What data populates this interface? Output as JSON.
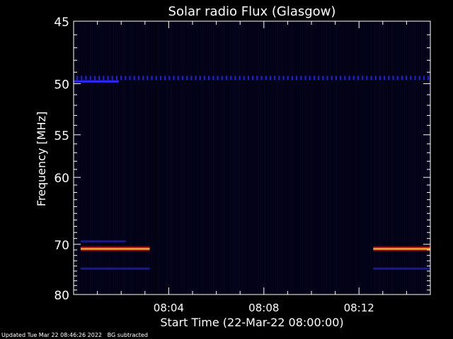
{
  "chart_data": {
    "type": "heatmap",
    "title": "Solar radio Flux (Glasgow)",
    "xlabel": "Start Time (22-Mar-22 08:00:00)",
    "ylabel": "Frequency [MHz]",
    "x_tick_labels": [
      "08:04",
      "08:08",
      "08:12"
    ],
    "x_ticks_min": [
      4,
      8,
      12
    ],
    "x_range_min": [
      0,
      15
    ],
    "y_ticks": [
      45,
      50,
      55,
      60,
      70,
      80
    ],
    "y_range_mhz": [
      45,
      80
    ],
    "y_scale": "reciprocal",
    "colormap": [
      "#000010",
      "#0a0a3a",
      "#1a1aa0",
      "#ff2a2a",
      "#ffb040",
      "#ffffa0"
    ],
    "features": [
      {
        "kind": "dotted-band",
        "freq_mhz": 49.5,
        "t_start_min": 0,
        "t_end_min": 15,
        "color": "#2020d0"
      },
      {
        "kind": "band",
        "freq_mhz": 49.8,
        "t_start_min": 0,
        "t_end_min": 1.9,
        "color": "#2a2aff"
      },
      {
        "kind": "strong-band",
        "freq_mhz": 70.8,
        "t_start_min": 0.3,
        "t_end_min": 3.2,
        "color": "#ff3a2a"
      },
      {
        "kind": "strong-band",
        "freq_mhz": 70.8,
        "t_start_min": 12.6,
        "t_end_min": 15,
        "color": "#ff3a2a"
      },
      {
        "kind": "band",
        "freq_mhz": 69.5,
        "t_start_min": 0.3,
        "t_end_min": 2.2,
        "color": "#1a1a80"
      },
      {
        "kind": "band",
        "freq_mhz": 74.5,
        "t_start_min": 0.3,
        "t_end_min": 3.2,
        "color": "#1a1a90"
      },
      {
        "kind": "band",
        "freq_mhz": 74.5,
        "t_start_min": 12.6,
        "t_end_min": 15,
        "color": "#1a1a90"
      }
    ],
    "grid": false
  },
  "footer": {
    "updated": "Updated Tue Mar 22 08:46:26 2022",
    "note": "BG subtracted"
  }
}
